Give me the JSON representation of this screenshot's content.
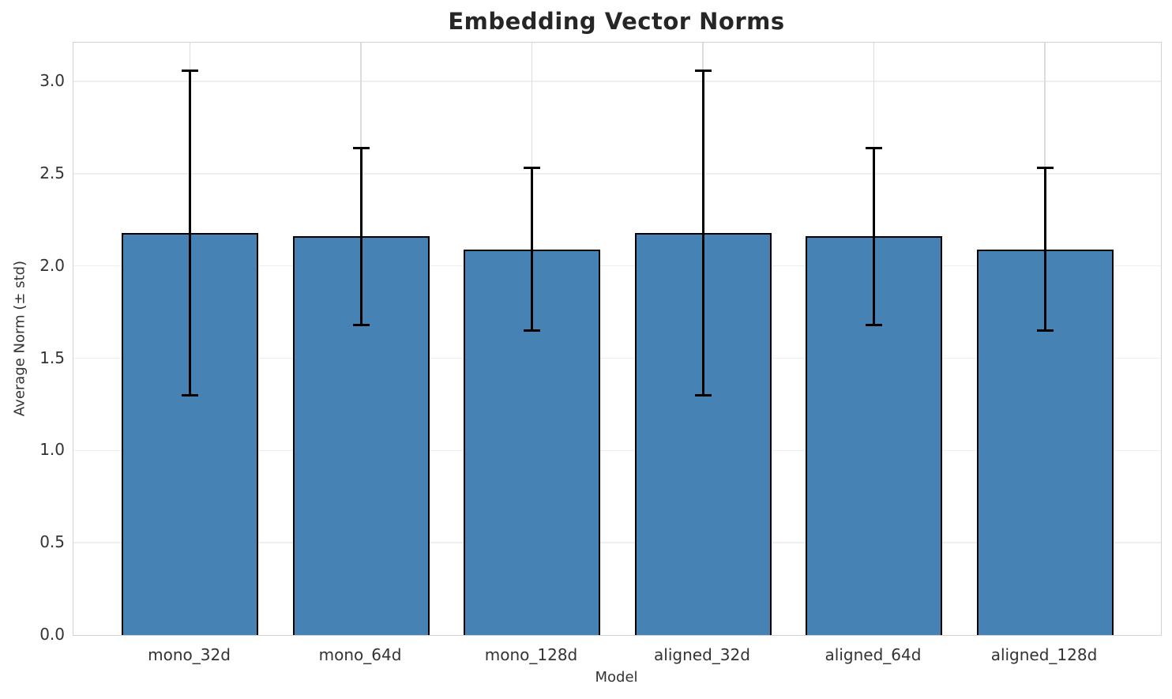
{
  "chart_data": {
    "type": "bar",
    "title": "Embedding Vector Norms",
    "xlabel": "Model",
    "ylabel": "Average Norm (± std)",
    "categories": [
      "mono_32d",
      "mono_64d",
      "mono_128d",
      "aligned_32d",
      "aligned_64d",
      "aligned_128d"
    ],
    "values": [
      2.18,
      2.16,
      2.09,
      2.18,
      2.16,
      2.09
    ],
    "errors": [
      0.88,
      0.48,
      0.44,
      0.88,
      0.48,
      0.44
    ],
    "yticks": [
      "0.0",
      "0.5",
      "1.0",
      "1.5",
      "2.0",
      "2.5",
      "3.0"
    ],
    "ylim": [
      0,
      3.21
    ],
    "grid": true,
    "legend": "none",
    "bar_color": "#4682B4",
    "bar_edge_color": "#000000",
    "error_color": "#000000"
  }
}
